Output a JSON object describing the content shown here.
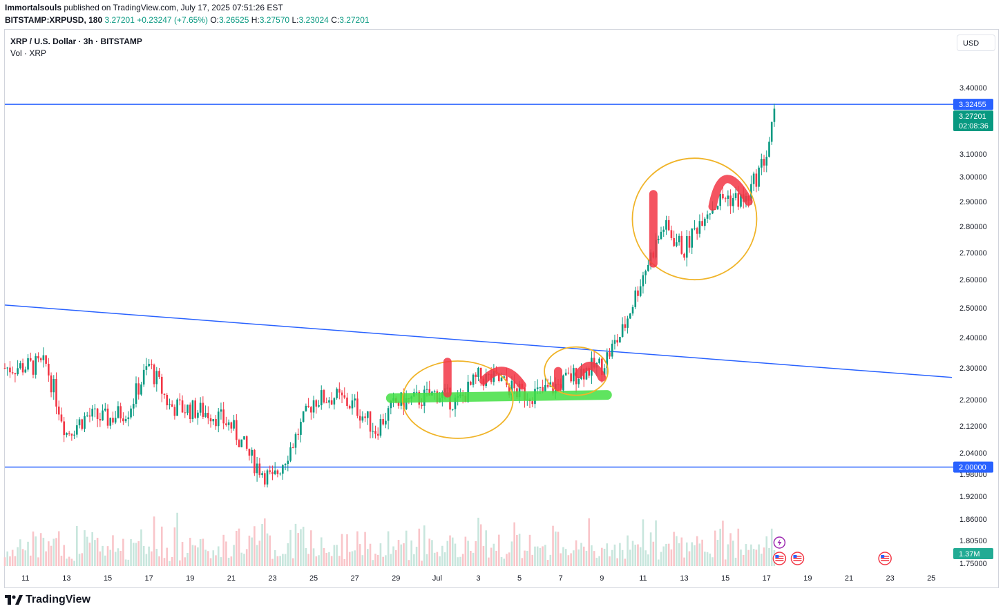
{
  "header": {
    "author": "Immortalsouls",
    "published": "published on TradingView.com, July 17, 2025 07:51:26 EST",
    "symbol": "BITSTAMP:XRPUSD, 180",
    "last": "3.27201",
    "change": "+0.23247 (+7.65%)",
    "o_label": "O:",
    "o": "3.26525",
    "h_label": "H:",
    "h": "3.27570",
    "l_label": "L:",
    "l": "3.23024",
    "c_label": "C:",
    "c": "3.27201"
  },
  "legend": {
    "title": "XRP / U.S. Dollar · 3h · BITSTAMP",
    "volume": "Vol · XRP"
  },
  "currency_button": "USD",
  "branding": "TradingView",
  "colors": {
    "up": "#089981",
    "down": "#f23645",
    "vol_up": "#c8e6dd",
    "vol_down": "#f9c5c9",
    "trendline": "#2962ff",
    "marker_green": "#44e044",
    "marker_red": "#f23645",
    "circle": "#f0b429"
  },
  "chart_data": {
    "type": "candlestick",
    "y_ticks": [
      "3.40000",
      "3.10000",
      "3.00000",
      "2.90000",
      "2.80000",
      "2.70000",
      "2.60000",
      "2.50000",
      "2.40000",
      "2.30000",
      "2.20000",
      "2.12000",
      "2.04000",
      "1.98000",
      "1.92000",
      "1.86000",
      "1.80500",
      "1.75000"
    ],
    "x_ticks": [
      "11",
      "13",
      "15",
      "17",
      "19",
      "21",
      "23",
      "25",
      "27",
      "29",
      "Jul",
      "3",
      "5",
      "7",
      "9",
      "11",
      "13",
      "15",
      "17",
      "19",
      "21",
      "23",
      "25"
    ],
    "x_range": [
      "2025-06-10",
      "2025-07-26"
    ],
    "price_labels": [
      {
        "text": "3.32455",
        "kind": "line"
      },
      {
        "text": "3.27201",
        "kind": "last"
      },
      {
        "text": "02:08:36",
        "kind": "countdown"
      },
      {
        "text": "2.00000",
        "kind": "line"
      },
      {
        "text": "1.37M",
        "kind": "volume"
      }
    ],
    "horizontal_lines": [
      3.32455,
      2.0
    ],
    "trend_line": {
      "from": [
        "2025-06-10",
        2.51
      ],
      "to": [
        "2025-07-26",
        2.27
      ]
    },
    "anchors": [
      [
        "2025-06-10",
        2.3
      ],
      [
        "2025-06-12",
        2.31
      ],
      [
        "2025-06-13",
        2.1
      ],
      [
        "2025-06-14",
        2.15
      ],
      [
        "2025-06-15",
        2.14
      ],
      [
        "2025-06-16",
        2.17
      ],
      [
        "2025-06-17",
        2.31
      ],
      [
        "2025-06-18",
        2.18
      ],
      [
        "2025-06-19",
        2.17
      ],
      [
        "2025-06-20",
        2.16
      ],
      [
        "2025-06-21",
        2.12
      ],
      [
        "2025-06-22",
        2.02
      ],
      [
        "2025-06-23",
        1.96
      ],
      [
        "2025-06-24",
        2.07
      ],
      [
        "2025-06-25",
        2.2
      ],
      [
        "2025-06-26",
        2.21
      ],
      [
        "2025-06-27",
        2.18
      ],
      [
        "2025-06-28",
        2.11
      ],
      [
        "2025-06-29",
        2.19
      ],
      [
        "2025-06-30",
        2.2
      ],
      [
        "2025-07-01",
        2.22
      ],
      [
        "2025-07-02",
        2.19
      ],
      [
        "2025-07-03",
        2.27
      ],
      [
        "2025-07-04",
        2.26
      ],
      [
        "2025-07-05",
        2.22
      ],
      [
        "2025-07-06",
        2.22
      ],
      [
        "2025-07-07",
        2.25
      ],
      [
        "2025-07-08",
        2.29
      ],
      [
        "2025-07-09",
        2.31
      ],
      [
        "2025-07-10",
        2.42
      ],
      [
        "2025-07-11",
        2.62
      ],
      [
        "2025-07-12",
        2.8
      ],
      [
        "2025-07-13",
        2.71
      ],
      [
        "2025-07-14",
        2.86
      ],
      [
        "2025-07-15",
        2.92
      ],
      [
        "2025-07-16",
        2.9
      ],
      [
        "2025-07-17",
        3.1
      ],
      [
        "2025-07-17T09:00",
        3.27
      ]
    ]
  }
}
